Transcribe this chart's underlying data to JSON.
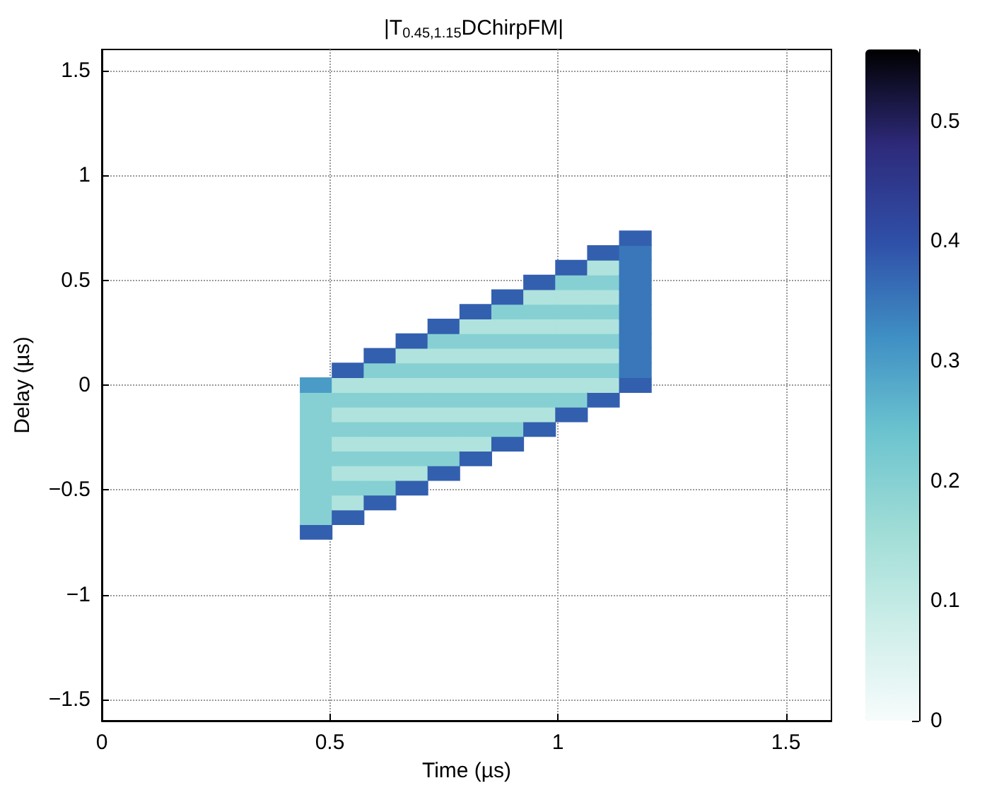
{
  "chart_data": {
    "type": "scatter",
    "title": "|T$_{0.45,1.15}$DChirpFM|",
    "xlabel": "Time (µs)",
    "ylabel": "Delay (µs)",
    "x": [
      0.47,
      0.47,
      0.47,
      0.47,
      0.47,
      0.47,
      0.47,
      0.47,
      0.47,
      0.47,
      0.47,
      0.54,
      0.54,
      0.54,
      0.54,
      0.54,
      0.54,
      0.54,
      0.54,
      0.54,
      0.54,
      0.54,
      0.61,
      0.61,
      0.61,
      0.61,
      0.61,
      0.61,
      0.61,
      0.61,
      0.61,
      0.61,
      0.61,
      0.68,
      0.68,
      0.68,
      0.68,
      0.68,
      0.68,
      0.68,
      0.68,
      0.68,
      0.68,
      0.68,
      0.75,
      0.75,
      0.75,
      0.75,
      0.75,
      0.75,
      0.75,
      0.75,
      0.75,
      0.75,
      0.75,
      0.82,
      0.82,
      0.82,
      0.82,
      0.82,
      0.82,
      0.82,
      0.82,
      0.82,
      0.82,
      0.82,
      0.89,
      0.89,
      0.89,
      0.89,
      0.89,
      0.89,
      0.89,
      0.89,
      0.89,
      0.89,
      0.89,
      0.96,
      0.96,
      0.96,
      0.96,
      0.96,
      0.96,
      0.96,
      0.96,
      0.96,
      0.96,
      0.96,
      1.03,
      1.03,
      1.03,
      1.03,
      1.03,
      1.03,
      1.03,
      1.03,
      1.03,
      1.03,
      1.03,
      1.1,
      1.1,
      1.1,
      1.1,
      1.1,
      1.1,
      1.1,
      1.1,
      1.1,
      1.1,
      1.1,
      1.17,
      1.17,
      1.17,
      1.17,
      1.17,
      1.17,
      1.17,
      1.17,
      1.17,
      1.17,
      1.17
    ],
    "values": [
      -0.7,
      -0.63,
      -0.56,
      -0.49,
      -0.42,
      -0.35,
      -0.28,
      -0.21,
      -0.14,
      -0.07,
      0,
      -0.63,
      -0.56,
      -0.49,
      -0.42,
      -0.35,
      -0.28,
      -0.21,
      -0.14,
      -0.07,
      0,
      0.07,
      -0.56,
      -0.49,
      -0.42,
      -0.35,
      -0.28,
      -0.21,
      -0.14,
      -0.07,
      0,
      0.07,
      0.14,
      -0.49,
      -0.42,
      -0.35,
      -0.28,
      -0.21,
      -0.14,
      -0.07,
      0,
      0.07,
      0.14,
      0.21,
      -0.42,
      -0.35,
      -0.28,
      -0.21,
      -0.14,
      -0.07,
      0,
      0.07,
      0.14,
      0.21,
      0.28,
      -0.35,
      -0.28,
      -0.21,
      -0.14,
      -0.07,
      0,
      0.07,
      0.14,
      0.21,
      0.28,
      0.35,
      -0.28,
      -0.21,
      -0.14,
      -0.07,
      0,
      0.07,
      0.14,
      0.21,
      0.28,
      0.35,
      0.42,
      -0.21,
      -0.14,
      -0.07,
      0,
      0.07,
      0.14,
      0.21,
      0.28,
      0.35,
      0.42,
      0.49,
      -0.14,
      -0.07,
      0,
      0.07,
      0.14,
      0.21,
      0.28,
      0.35,
      0.42,
      0.49,
      0.56,
      -0.07,
      0,
      0.07,
      0.14,
      0.21,
      0.28,
      0.35,
      0.42,
      0.49,
      0.56,
      0.63,
      0,
      0.07,
      0.14,
      0.21,
      0.28,
      0.35,
      0.42,
      0.49,
      0.56,
      0.63,
      0.7
    ],
    "cvalues": [
      0.38,
      0.2,
      0.2,
      0.2,
      0.2,
      0.2,
      0.2,
      0.2,
      0.2,
      0.2,
      0.3,
      0.38,
      0.13,
      0.2,
      0.13,
      0.2,
      0.13,
      0.2,
      0.13,
      0.2,
      0.13,
      0.38,
      0.38,
      0.2,
      0.13,
      0.2,
      0.13,
      0.2,
      0.13,
      0.2,
      0.13,
      0.2,
      0.38,
      0.38,
      0.13,
      0.2,
      0.13,
      0.2,
      0.13,
      0.2,
      0.13,
      0.2,
      0.13,
      0.38,
      0.38,
      0.2,
      0.13,
      0.2,
      0.13,
      0.2,
      0.13,
      0.2,
      0.13,
      0.2,
      0.38,
      0.38,
      0.13,
      0.2,
      0.13,
      0.2,
      0.13,
      0.2,
      0.13,
      0.2,
      0.13,
      0.38,
      0.38,
      0.2,
      0.13,
      0.2,
      0.13,
      0.2,
      0.13,
      0.2,
      0.13,
      0.2,
      0.38,
      0.38,
      0.13,
      0.2,
      0.13,
      0.2,
      0.13,
      0.2,
      0.13,
      0.2,
      0.13,
      0.38,
      0.38,
      0.2,
      0.13,
      0.2,
      0.13,
      0.2,
      0.13,
      0.2,
      0.13,
      0.2,
      0.38,
      0.38,
      0.13,
      0.2,
      0.13,
      0.2,
      0.13,
      0.2,
      0.13,
      0.2,
      0.13,
      0.38,
      0.38,
      0.35,
      0.35,
      0.35,
      0.35,
      0.35,
      0.35,
      0.35,
      0.35,
      0.35,
      0.38
    ],
    "xlim": [
      0,
      1.6
    ],
    "xticks": [
      0,
      0.5,
      1,
      1.5
    ],
    "ylim": [
      -1.6,
      1.6
    ],
    "yticks": [
      {
        "value": -1.5,
        "label": "−1.5"
      },
      {
        "value": -1,
        "label": "−1"
      },
      {
        "value": -0.5,
        "label": "−0.5"
      },
      0,
      0.5,
      1,
      1.5
    ],
    "clim": [
      0,
      0.56
    ],
    "cticks": [
      0,
      0.1,
      0.2,
      0.3,
      0.4,
      0.5
    ],
    "grid": true,
    "marker": "square"
  }
}
